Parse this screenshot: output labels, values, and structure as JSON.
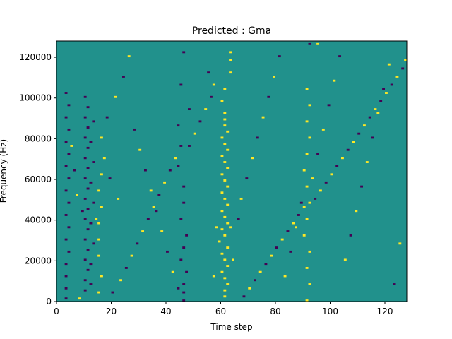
{
  "chart_data": {
    "type": "heatmap",
    "title": "Predicted : Gma",
    "xlabel": "Time step",
    "ylabel": "Frequency (Hz)",
    "xlim": [
      0,
      128
    ],
    "ylim": [
      0,
      128000
    ],
    "x_ticks": [
      0,
      20,
      40,
      60,
      80,
      100,
      120
    ],
    "y_ticks": [
      0,
      20000,
      40000,
      60000,
      80000,
      100000,
      120000
    ],
    "x_tick_labels": [
      "0",
      "20",
      "40",
      "60",
      "80",
      "100",
      "120"
    ],
    "y_tick_labels": [
      "0",
      "20000",
      "40000",
      "60000",
      "80000",
      "100000",
      "120000"
    ],
    "levels": [
      -1,
      0,
      1
    ],
    "colors": {
      "-1": "#440154",
      "0": "#21918c",
      "1": "#fde725"
    },
    "background_value": 0,
    "grid": false,
    "cells_note": "each cell: time step t, frequency bin f (bin height 1000 Hz), value v (-1 low / 1 high)",
    "cells": [
      [
        61,
        2,
        1
      ],
      [
        61,
        5,
        1
      ],
      [
        62,
        8,
        1
      ],
      [
        61,
        11,
        1
      ],
      [
        60,
        14,
        1
      ],
      [
        62,
        17,
        1
      ],
      [
        61,
        20,
        1
      ],
      [
        60,
        23,
        1
      ],
      [
        62,
        26,
        1
      ],
      [
        59,
        29,
        1
      ],
      [
        61,
        32,
        1
      ],
      [
        60,
        35,
        1
      ],
      [
        62,
        38,
        1
      ],
      [
        61,
        41,
        1
      ],
      [
        60,
        44,
        1
      ],
      [
        62,
        47,
        1
      ],
      [
        61,
        50,
        1
      ],
      [
        60,
        53,
        1
      ],
      [
        62,
        56,
        1
      ],
      [
        61,
        59,
        1
      ],
      [
        60,
        62,
        1
      ],
      [
        62,
        65,
        1
      ],
      [
        61,
        68,
        1
      ],
      [
        60,
        71,
        1
      ],
      [
        62,
        74,
        1
      ],
      [
        61,
        77,
        1
      ],
      [
        60,
        80,
        1
      ],
      [
        62,
        83,
        1
      ],
      [
        61,
        86,
        1
      ],
      [
        61,
        89,
        1
      ],
      [
        61,
        92,
        1
      ],
      [
        60,
        98,
        1
      ],
      [
        61,
        104,
        1
      ],
      [
        63,
        112,
        1
      ],
      [
        63,
        118,
        1
      ],
      [
        63,
        122,
        1
      ],
      [
        58,
        36,
        1
      ],
      [
        63,
        36,
        1
      ],
      [
        57,
        12,
        1
      ],
      [
        64,
        20,
        1
      ],
      [
        3,
        1,
        -1
      ],
      [
        3,
        6,
        -1
      ],
      [
        3,
        12,
        -1
      ],
      [
        3,
        18,
        -1
      ],
      [
        4,
        24,
        -1
      ],
      [
        3,
        30,
        -1
      ],
      [
        4,
        36,
        -1
      ],
      [
        3,
        42,
        -1
      ],
      [
        4,
        48,
        -1
      ],
      [
        3,
        54,
        -1
      ],
      [
        4,
        60,
        -1
      ],
      [
        3,
        66,
        -1
      ],
      [
        4,
        72,
        -1
      ],
      [
        3,
        78,
        -1
      ],
      [
        4,
        84,
        -1
      ],
      [
        3,
        90,
        -1
      ],
      [
        4,
        96,
        -1
      ],
      [
        3,
        102,
        -1
      ],
      [
        10,
        5,
        -1
      ],
      [
        10,
        10,
        -1
      ],
      [
        11,
        15,
        -1
      ],
      [
        10,
        20,
        -1
      ],
      [
        11,
        25,
        -1
      ],
      [
        10,
        30,
        -1
      ],
      [
        11,
        35,
        -1
      ],
      [
        10,
        40,
        -1
      ],
      [
        11,
        45,
        -1
      ],
      [
        10,
        50,
        -1
      ],
      [
        11,
        55,
        -1
      ],
      [
        10,
        60,
        -1
      ],
      [
        11,
        65,
        -1
      ],
      [
        10,
        70,
        -1
      ],
      [
        11,
        75,
        -1
      ],
      [
        10,
        80,
        -1
      ],
      [
        11,
        85,
        -1
      ],
      [
        10,
        90,
        -1
      ],
      [
        11,
        95,
        -1
      ],
      [
        10,
        100,
        -1
      ],
      [
        12,
        8,
        -1
      ],
      [
        12,
        18,
        -1
      ],
      [
        13,
        28,
        -1
      ],
      [
        12,
        38,
        -1
      ],
      [
        13,
        48,
        -1
      ],
      [
        12,
        58,
        -1
      ],
      [
        13,
        68,
        -1
      ],
      [
        12,
        78,
        -1
      ],
      [
        13,
        88,
        -1
      ],
      [
        15,
        22,
        1
      ],
      [
        15,
        30,
        1
      ],
      [
        15,
        38,
        1
      ],
      [
        16,
        46,
        1
      ],
      [
        15,
        54,
        1
      ],
      [
        16,
        62,
        1
      ],
      [
        16,
        12,
        1
      ],
      [
        15,
        4,
        1
      ],
      [
        17,
        70,
        1
      ],
      [
        16,
        80,
        1
      ],
      [
        46,
        0,
        -1
      ],
      [
        46,
        4,
        -1
      ],
      [
        46,
        8,
        -1
      ],
      [
        47,
        14,
        -1
      ],
      [
        45,
        20,
        -1
      ],
      [
        46,
        26,
        -1
      ],
      [
        47,
        32,
        -1
      ],
      [
        45,
        40,
        -1
      ],
      [
        46,
        48,
        -1
      ],
      [
        46,
        56,
        -1
      ],
      [
        44,
        66,
        -1
      ],
      [
        45,
        76,
        -1
      ],
      [
        44,
        86,
        -1
      ],
      [
        48,
        94,
        -1
      ],
      [
        45,
        106,
        -1
      ],
      [
        46,
        122,
        -1
      ],
      [
        91,
        0,
        1
      ],
      [
        92,
        8,
        1
      ],
      [
        91,
        16,
        1
      ],
      [
        92,
        24,
        1
      ],
      [
        90,
        32,
        1
      ],
      [
        91,
        40,
        1
      ],
      [
        92,
        48,
        1
      ],
      [
        91,
        56,
        1
      ],
      [
        90,
        64,
        1
      ],
      [
        91,
        72,
        1
      ],
      [
        92,
        80,
        1
      ],
      [
        91,
        88,
        1
      ],
      [
        92,
        96,
        1
      ],
      [
        91,
        104,
        1
      ],
      [
        92,
        126,
        -1
      ],
      [
        95,
        126,
        1
      ],
      [
        8,
        1,
        1
      ],
      [
        20,
        4,
        -1
      ],
      [
        23,
        10,
        1
      ],
      [
        25,
        16,
        -1
      ],
      [
        27,
        22,
        1
      ],
      [
        29,
        28,
        -1
      ],
      [
        31,
        34,
        1
      ],
      [
        33,
        40,
        -1
      ],
      [
        35,
        46,
        1
      ],
      [
        37,
        52,
        -1
      ],
      [
        39,
        58,
        1
      ],
      [
        41,
        64,
        -1
      ],
      [
        43,
        70,
        1
      ],
      [
        48,
        76,
        -1
      ],
      [
        50,
        82,
        1
      ],
      [
        52,
        88,
        -1
      ],
      [
        54,
        94,
        1
      ],
      [
        56,
        100,
        -1
      ],
      [
        57,
        106,
        1
      ],
      [
        55,
        112,
        -1
      ],
      [
        68,
        2,
        -1
      ],
      [
        70,
        6,
        1
      ],
      [
        72,
        10,
        -1
      ],
      [
        74,
        14,
        1
      ],
      [
        76,
        18,
        -1
      ],
      [
        78,
        22,
        1
      ],
      [
        80,
        26,
        -1
      ],
      [
        82,
        30,
        1
      ],
      [
        84,
        34,
        -1
      ],
      [
        86,
        38,
        1
      ],
      [
        88,
        42,
        -1
      ],
      [
        90,
        46,
        1
      ],
      [
        94,
        50,
        -1
      ],
      [
        96,
        54,
        1
      ],
      [
        98,
        58,
        -1
      ],
      [
        100,
        62,
        1
      ],
      [
        102,
        66,
        -1
      ],
      [
        104,
        70,
        1
      ],
      [
        106,
        74,
        -1
      ],
      [
        108,
        78,
        1
      ],
      [
        110,
        82,
        -1
      ],
      [
        112,
        86,
        1
      ],
      [
        114,
        90,
        -1
      ],
      [
        116,
        94,
        1
      ],
      [
        118,
        98,
        -1
      ],
      [
        120,
        102,
        1
      ],
      [
        122,
        106,
        -1
      ],
      [
        124,
        110,
        1
      ],
      [
        126,
        114,
        -1
      ],
      [
        127,
        118,
        1
      ],
      [
        66,
        40,
        -1
      ],
      [
        67,
        50,
        1
      ],
      [
        69,
        60,
        -1
      ],
      [
        71,
        70,
        1
      ],
      [
        73,
        80,
        -1
      ],
      [
        75,
        90,
        1
      ],
      [
        77,
        100,
        -1
      ],
      [
        79,
        110,
        1
      ],
      [
        81,
        120,
        -1
      ],
      [
        83,
        12,
        1
      ],
      [
        85,
        24,
        -1
      ],
      [
        87,
        36,
        1
      ],
      [
        89,
        48,
        -1
      ],
      [
        93,
        60,
        1
      ],
      [
        95,
        72,
        -1
      ],
      [
        97,
        84,
        1
      ],
      [
        99,
        96,
        -1
      ],
      [
        101,
        108,
        1
      ],
      [
        103,
        120,
        -1
      ],
      [
        105,
        20,
        1
      ],
      [
        107,
        32,
        -1
      ],
      [
        109,
        44,
        1
      ],
      [
        111,
        56,
        -1
      ],
      [
        113,
        68,
        1
      ],
      [
        115,
        80,
        -1
      ],
      [
        117,
        92,
        1
      ],
      [
        119,
        104,
        -1
      ],
      [
        121,
        116,
        1
      ],
      [
        123,
        8,
        -1
      ],
      [
        125,
        28,
        1
      ],
      [
        18,
        90,
        -1
      ],
      [
        21,
        100,
        1
      ],
      [
        24,
        110,
        -1
      ],
      [
        26,
        120,
        1
      ],
      [
        28,
        84,
        -1
      ],
      [
        30,
        74,
        1
      ],
      [
        32,
        64,
        -1
      ],
      [
        34,
        54,
        1
      ],
      [
        36,
        44,
        -1
      ],
      [
        38,
        34,
        1
      ],
      [
        40,
        24,
        -1
      ],
      [
        42,
        14,
        1
      ],
      [
        44,
        6,
        -1
      ],
      [
        22,
        50,
        1
      ],
      [
        19,
        60,
        -1
      ],
      [
        14,
        40,
        1
      ],
      [
        9,
        44,
        -1
      ],
      [
        7,
        52,
        1
      ],
      [
        6,
        64,
        -1
      ],
      [
        5,
        76,
        1
      ]
    ]
  }
}
